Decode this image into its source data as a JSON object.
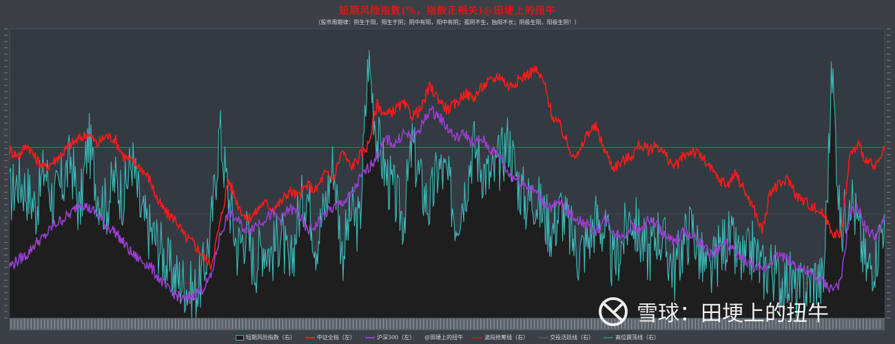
{
  "title": "短期风险指数(%，指数正相关)@田埂上的扭牛",
  "subtitle": "（股市周期律：阴生于阳，阳生于阴；阴中有阳，阳中有阴；孤阴不生，独阳不长；阴极生阳，阳极生阴！）",
  "watermark": {
    "logo_icon": "snowball-logo-icon",
    "text": "雪球：田埂上的扭牛"
  },
  "colors": {
    "background": "#3b4047",
    "plot_bg": "#343a41",
    "area_fill": "#1e1e1e",
    "risk": "#3cbcbc",
    "csi_all": "#ff1a1a",
    "hs300": "#9a3fd0",
    "high_line": "#2e8b57",
    "low_line": "#b22222"
  },
  "chart_data": {
    "type": "line",
    "title": "短期风险指数(%，指数正相关)@田埂上的扭牛",
    "subtitle": "（股市周期律：阴生于阳，阳生于阴；阴中有阳，阳中有阴；孤阴不生，独阳不长；阴极生阳，阳极生阴！）",
    "x_range": [
      0,
      100
    ],
    "y_left_range": [
      0,
      100
    ],
    "y_right_range": [
      0,
      100
    ],
    "grid": false,
    "legend_position": "bottom",
    "reference_lines": [
      {
        "name": "波段抢筹线（右）",
        "value": 12,
        "color": "#b22222"
      },
      {
        "name": "交投活跃线（右）",
        "value": 36,
        "color": "#444444"
      },
      {
        "name": "高位震荡线（右）",
        "value": 59,
        "color": "#2e8b57"
      }
    ],
    "series": [
      {
        "name": "短期风险指数（右）",
        "axis": "right",
        "style": "area",
        "color": "#3cbcbc",
        "x": [
          0,
          1,
          2,
          3,
          4,
          5,
          6,
          7,
          8,
          9,
          10,
          11,
          12,
          13,
          14,
          15,
          16,
          17,
          18,
          19,
          20,
          21,
          22,
          23,
          24,
          25,
          26,
          27,
          28,
          29,
          30,
          31,
          32,
          33,
          34,
          35,
          36,
          37,
          38,
          39,
          40,
          41,
          42,
          43,
          44,
          45,
          46,
          47,
          48,
          49,
          50,
          51,
          52,
          53,
          54,
          55,
          56,
          57,
          58,
          59,
          60,
          61,
          62,
          63,
          64,
          65,
          66,
          67,
          68,
          69,
          70,
          71,
          72,
          73,
          74,
          75,
          76,
          77,
          78,
          79,
          80,
          81,
          82,
          83,
          84,
          85,
          86,
          87,
          88,
          89,
          90,
          91,
          92,
          93,
          94,
          95,
          96,
          97,
          98,
          99,
          100
        ],
        "values": [
          42,
          48,
          44,
          38,
          52,
          40,
          46,
          55,
          36,
          62,
          44,
          38,
          48,
          42,
          55,
          36,
          30,
          26,
          18,
          14,
          12,
          8,
          14,
          30,
          65,
          42,
          24,
          30,
          18,
          26,
          22,
          30,
          14,
          36,
          44,
          26,
          38,
          54,
          22,
          36,
          32,
          90,
          62,
          50,
          42,
          34,
          60,
          46,
          38,
          52,
          48,
          34,
          44,
          60,
          52,
          48,
          54,
          62,
          48,
          40,
          42,
          36,
          30,
          38,
          30,
          22,
          26,
          34,
          30,
          18,
          26,
          36,
          28,
          22,
          30,
          24,
          16,
          26,
          32,
          20,
          14,
          22,
          28,
          22,
          18,
          24,
          16,
          18,
          12,
          14,
          8,
          10,
          14,
          12,
          86,
          28,
          46,
          30,
          16,
          22,
          36
        ]
      },
      {
        "name": "中证全指（左）",
        "axis": "left",
        "style": "line",
        "color": "#ff1a1a",
        "x": [
          0,
          1,
          2,
          3,
          4,
          5,
          6,
          7,
          8,
          9,
          10,
          11,
          12,
          13,
          14,
          15,
          16,
          17,
          18,
          19,
          20,
          21,
          22,
          23,
          24,
          25,
          26,
          27,
          28,
          29,
          30,
          31,
          32,
          33,
          34,
          35,
          36,
          37,
          38,
          39,
          40,
          41,
          42,
          43,
          44,
          45,
          46,
          47,
          48,
          49,
          50,
          51,
          52,
          53,
          54,
          55,
          56,
          57,
          58,
          59,
          60,
          61,
          62,
          63,
          64,
          65,
          66,
          67,
          68,
          69,
          70,
          71,
          72,
          73,
          74,
          75,
          76,
          77,
          78,
          79,
          80,
          81,
          82,
          83,
          84,
          85,
          86,
          87,
          88,
          89,
          90,
          91,
          92,
          93,
          94,
          95,
          96,
          97,
          98,
          99,
          100
        ],
        "values": [
          58,
          56,
          60,
          55,
          52,
          54,
          57,
          60,
          62,
          64,
          60,
          63,
          62,
          56,
          54,
          52,
          48,
          40,
          36,
          34,
          28,
          26,
          22,
          18,
          32,
          48,
          40,
          34,
          36,
          40,
          38,
          40,
          44,
          42,
          46,
          44,
          50,
          48,
          58,
          52,
          56,
          60,
          74,
          70,
          72,
          74,
          70,
          72,
          80,
          76,
          72,
          74,
          78,
          76,
          80,
          82,
          84,
          80,
          82,
          84,
          86,
          82,
          70,
          66,
          58,
          56,
          64,
          66,
          58,
          52,
          54,
          56,
          60,
          58,
          60,
          56,
          52,
          56,
          58,
          56,
          52,
          48,
          46,
          50,
          44,
          38,
          30,
          44,
          46,
          48,
          42,
          40,
          38,
          36,
          30,
          28,
          56,
          60,
          54,
          52,
          58
        ]
      },
      {
        "name": "沪深300（左）",
        "axis": "left",
        "style": "line",
        "color": "#9a3fd0",
        "x": [
          0,
          1,
          2,
          3,
          4,
          5,
          6,
          7,
          8,
          9,
          10,
          11,
          12,
          13,
          14,
          15,
          16,
          17,
          18,
          19,
          20,
          21,
          22,
          23,
          24,
          25,
          26,
          27,
          28,
          29,
          30,
          31,
          32,
          33,
          34,
          35,
          36,
          37,
          38,
          39,
          40,
          41,
          42,
          43,
          44,
          45,
          46,
          47,
          48,
          49,
          50,
          51,
          52,
          53,
          54,
          55,
          56,
          57,
          58,
          59,
          60,
          61,
          62,
          63,
          64,
          65,
          66,
          67,
          68,
          69,
          70,
          71,
          72,
          73,
          74,
          75,
          76,
          77,
          78,
          79,
          80,
          81,
          82,
          83,
          84,
          85,
          86,
          87,
          88,
          89,
          90,
          91,
          92,
          93,
          94,
          95,
          96,
          97,
          98,
          99,
          100
        ],
        "values": [
          18,
          20,
          22,
          26,
          28,
          32,
          34,
          36,
          40,
          38,
          36,
          32,
          30,
          26,
          22,
          20,
          18,
          14,
          10,
          8,
          6,
          8,
          10,
          14,
          28,
          36,
          34,
          30,
          32,
          34,
          36,
          34,
          38,
          36,
          30,
          32,
          36,
          38,
          40,
          42,
          48,
          52,
          56,
          62,
          60,
          64,
          62,
          66,
          72,
          70,
          66,
          62,
          64,
          60,
          62,
          58,
          56,
          50,
          48,
          46,
          44,
          40,
          38,
          40,
          36,
          34,
          32,
          30,
          34,
          30,
          28,
          32,
          30,
          34,
          32,
          28,
          26,
          30,
          28,
          26,
          22,
          24,
          26,
          22,
          20,
          18,
          16,
          20,
          22,
          20,
          18,
          16,
          14,
          12,
          10,
          12,
          36,
          38,
          30,
          28,
          34
        ]
      }
    ],
    "legend": [
      "短期风险指数（右）",
      "中证全指（左）",
      "沪深300（左）",
      "@田埂上的扭牛",
      "波段抢筹线（右）",
      "交投活跃线（右）",
      "高位震荡线（右）"
    ]
  },
  "legend_items": [
    {
      "label": "短期风险指数（右）",
      "color": "#3cbcbc",
      "kind": "box"
    },
    {
      "label": "中证全指（左）",
      "color": "#ff1a1a",
      "kind": "line"
    },
    {
      "label": "沪深300（左）",
      "color": "#9a3fd0",
      "kind": "line"
    },
    {
      "label": "@田埂上的扭牛",
      "color": "#cccccc",
      "kind": "none"
    },
    {
      "label": "波段抢筹线（右）",
      "color": "#b22222",
      "kind": "line"
    },
    {
      "label": "交投活跃线（右）",
      "color": "#555555",
      "kind": "line"
    },
    {
      "label": "高位震荡线（右）",
      "color": "#2e8b57",
      "kind": "line"
    }
  ]
}
